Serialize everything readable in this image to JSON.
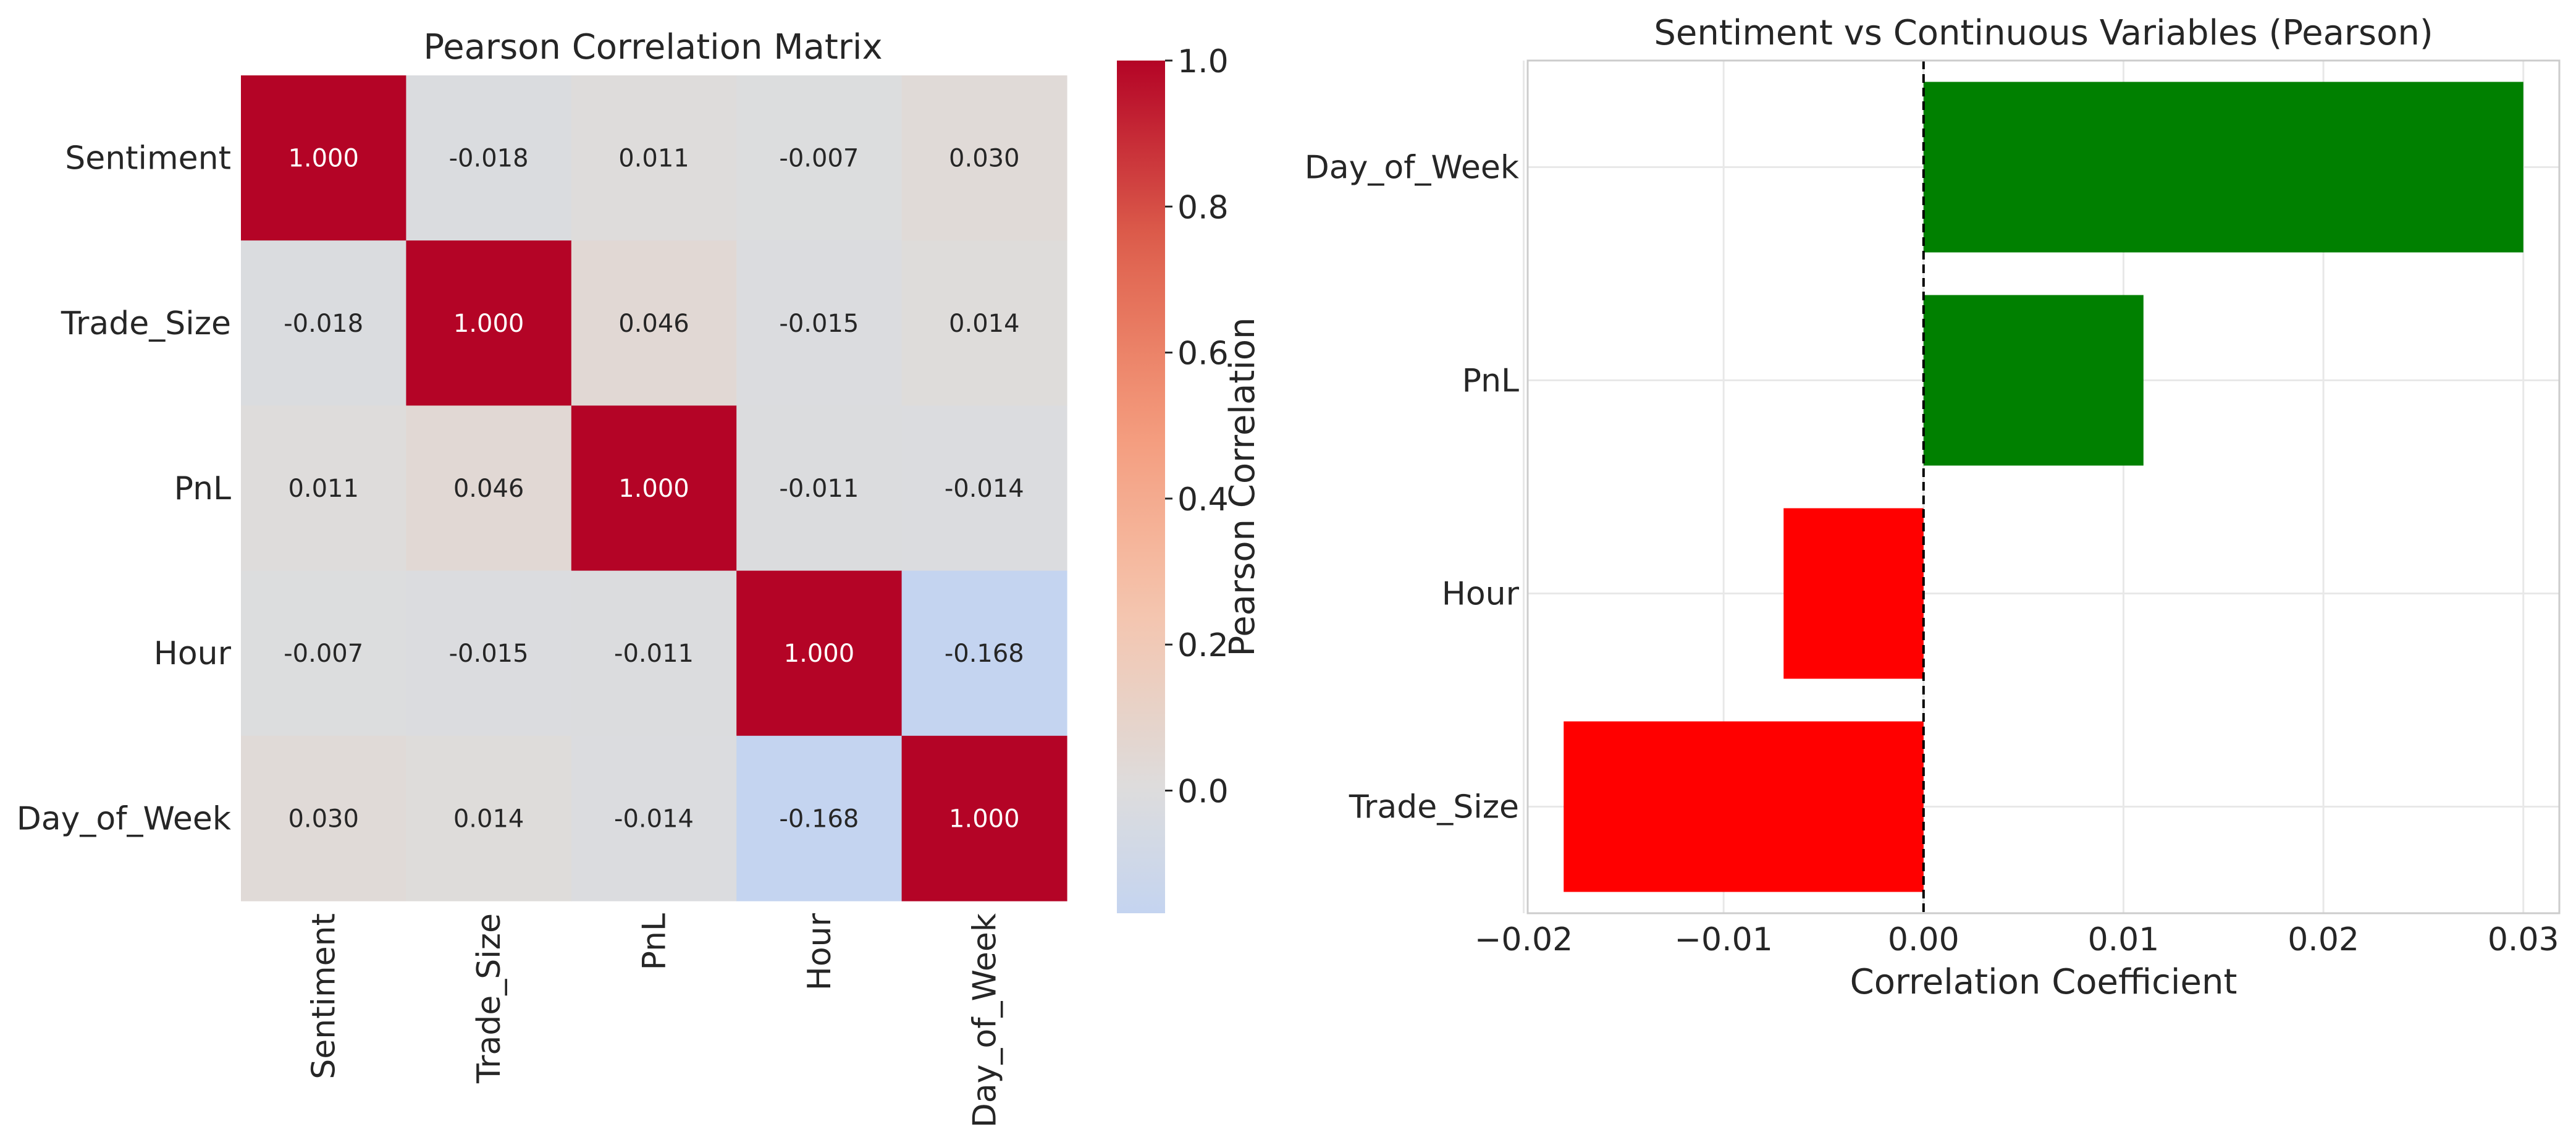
{
  "chart_data": [
    {
      "type": "heatmap",
      "title": "Pearson Correlation Matrix",
      "rows": [
        "Sentiment",
        "Trade_Size",
        "PnL",
        "Hour",
        "Day_of_Week"
      ],
      "columns": [
        "Sentiment",
        "Trade_Size",
        "PnL",
        "Hour",
        "Day_of_Week"
      ],
      "values": [
        [
          1.0,
          -0.018,
          0.011,
          -0.007,
          0.03
        ],
        [
          -0.018,
          1.0,
          0.046,
          -0.015,
          0.014
        ],
        [
          0.011,
          0.046,
          1.0,
          -0.011,
          -0.014
        ],
        [
          -0.007,
          -0.015,
          -0.011,
          1.0,
          -0.168
        ],
        [
          0.03,
          0.014,
          -0.014,
          -0.168,
          1.0
        ]
      ],
      "cell_labels": [
        [
          "1.000",
          "-0.018",
          "0.011",
          "-0.007",
          "0.030"
        ],
        [
          "-0.018",
          "1.000",
          "0.046",
          "-0.015",
          "0.014"
        ],
        [
          "0.011",
          "0.046",
          "1.000",
          "-0.011",
          "-0.014"
        ],
        [
          "-0.007",
          "-0.015",
          "-0.011",
          "1.000",
          "-0.168"
        ],
        [
          "0.030",
          "0.014",
          "-0.014",
          "-0.168",
          "1.000"
        ]
      ],
      "colormap": "coolwarm",
      "center": 0,
      "colorbar": {
        "label": "Pearson Correlation",
        "range": [
          -0.168,
          1.0
        ],
        "ticks": [
          0.0,
          0.2,
          0.4,
          0.6,
          0.8,
          1.0
        ],
        "tick_labels": [
          "0.0",
          "0.2",
          "0.4",
          "0.6",
          "0.8",
          "1.0"
        ]
      }
    },
    {
      "type": "bar",
      "orientation": "horizontal",
      "title": "Sentiment vs Continuous Variables (Pearson)",
      "categories": [
        "Day_of_Week",
        "PnL",
        "Hour",
        "Trade_Size"
      ],
      "values": [
        0.03,
        0.011,
        -0.007,
        -0.018
      ],
      "colors": [
        "#008000",
        "#008000",
        "#ff0000",
        "#ff0000"
      ],
      "xlabel": "Correlation Coefficient",
      "ylabel": "",
      "xlim": [
        -0.0198,
        0.0318
      ],
      "xticks": [
        -0.02,
        -0.01,
        0.0,
        0.01,
        0.02,
        0.03
      ],
      "xtick_labels": [
        "−0.02",
        "−0.01",
        "0.00",
        "0.01",
        "0.02",
        "0.03"
      ],
      "zero_line": "dashed",
      "grid": true
    }
  ]
}
